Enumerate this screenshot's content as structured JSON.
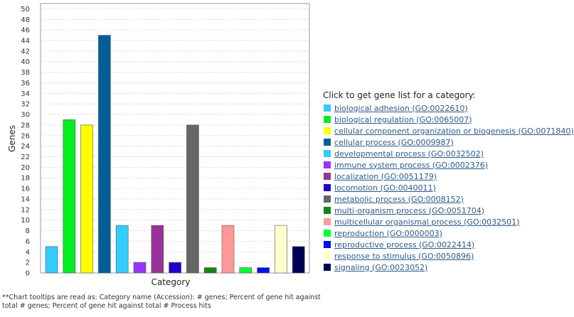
{
  "chart_data": {
    "type": "bar",
    "ylabel": "Genes",
    "xlabel": "Category",
    "ylim": [
      0,
      51
    ],
    "yticks": [
      0,
      2,
      4,
      6,
      8,
      10,
      12,
      14,
      16,
      18,
      20,
      22,
      24,
      26,
      28,
      30,
      32,
      34,
      36,
      38,
      40,
      42,
      44,
      46,
      48,
      50
    ],
    "grid": true,
    "categories": [
      "biological adhesion (GO:0022610)",
      "biological regulation (GO:0065007)",
      "cellular component organization or biogenesis (GO:0071840)",
      "cellular process (GO:0009987)",
      "developmental process (GO:0032502)",
      "immune system process (GO:0002376)",
      "localization (GO:0051179)",
      "locomotion (GO:0040011)",
      "metabolic process (GO:0008152)",
      "multi-organism process (GO:0051704)",
      "multicellular organismal process (GO:0032501)",
      "reproduction (GO:0000003)",
      "reproductive process (GO:0022414)",
      "response to stimulus (GO:0050896)",
      "signaling (GO:0023052)"
    ],
    "values": [
      5,
      29,
      28,
      45,
      9,
      2,
      9,
      2,
      28,
      1,
      9,
      1,
      1,
      9,
      5
    ],
    "colors": [
      "#33ccff",
      "#00ee22",
      "#ffff00",
      "#005f99",
      "#33ccff",
      "#9933ff",
      "#993399",
      "#2200cc",
      "#666666",
      "#118811",
      "#ff9999",
      "#00ff33",
      "#0011ee",
      "#ffffcc",
      "#000055"
    ]
  },
  "legend": {
    "title": "Click to get gene list for a category:"
  },
  "footnote": "**Chart tooltips are read as: Category name (Accession): # genes; Percent of gene hit against total # genes; Percent of gene hit against total # Process hits"
}
